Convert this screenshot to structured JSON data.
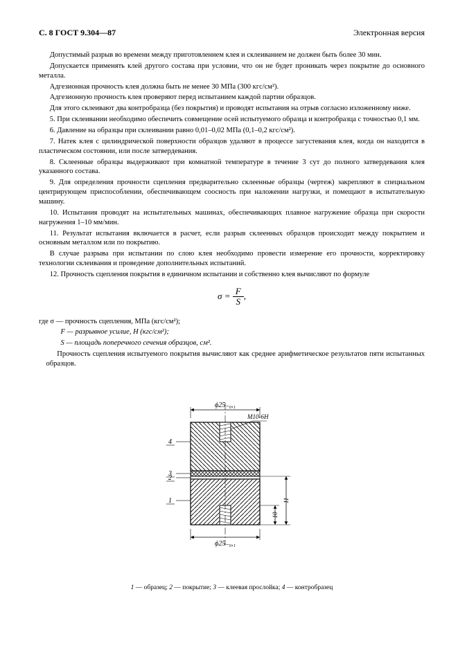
{
  "header": {
    "left": "С. 8 ГОСТ 9.304—87",
    "right": "Электронная версия"
  },
  "paragraphs": [
    "Допустимый разрыв во времени между приготовлением клея и склеиванием не должен быть более 30 мин.",
    "Допускается применять клей другого состава при условии, что он не будет проникать через покрытие до основного металла.",
    "Адгезионная прочность клея должна быть не менее 30 МПа (300 кгс/см²).",
    "Адгезионную прочность клея проверяют перед испытанием каждой партии образцов.",
    "Для этого склеивают два контробразца (без покрытия) и проводят испытания на отрыв согласно изложенному ниже.",
    "5. При склеивании необходимо обеспечить совмещение осей испытуемого образца и контробразца с точностью 0,1 мм.",
    "6. Давление на образцы при склеивании равно 0,01–0,02 МПа (0,1–0,2 кгс/см²).",
    "7. Натек клея с цилиндрической поверхности образцов удаляют в процессе загустевания клея, когда он находится в пластическом состоянии, или после затвердевания.",
    "8. Склеенные образцы выдерживают при комнатной температуре в течение 3 сут до полного затвердевания клея указанного состава.",
    "9. Для определения прочности сцепления предварительно склеенные образцы (чертеж) закрепляют в специальном центрирующем приспособлении, обеспечивающем соосность при наложении нагрузки, и помещают в испытательную машину.",
    "10. Испытания проводят на испытательных машинах, обеспечивающих плавное нагружение образца при скорости нагружения 1–10 мм/мин.",
    "11. Результат испытания включается в расчет, если разрыв склеенных образцов происходит между покрытием и основным металлом или по покрытию.",
    "В случае разрыва при испытании по слою клея необходимо провести измерение его прочности, корректировку технологии склеивания и проведение дополнительных испытаний.",
    "12. Прочность сцепления покрытия в единичном испытании и собственно клея вычисляют по формуле"
  ],
  "formula": {
    "lhs": "σ =",
    "num": "F",
    "den": "S"
  },
  "where": {
    "line1": "где σ — прочность сцепления, МПа (кгс/см²);",
    "line2": "F — разрывное усилие, Н (кгс/см²);",
    "line3": "S — площадь поперечного сечения образцов, см².",
    "line4": "Прочность сцепления испытуемого покрытия вычисляют как среднее арифметическое результатов пяти испытанных образцов."
  },
  "fig": {
    "dim_top": "ϕ25₋₀,₁",
    "thread": "М10-6Н",
    "dim_bottom": "ϕ25₋₀,₁",
    "label1": "4",
    "label2": "3",
    "label3": "2",
    "label4": "1",
    "dim_right1": "11",
    "dim_right2": "10",
    "caption_parts": {
      "n1": "1",
      "t1": " — образец; ",
      "n2": "2",
      "t2": " — покрытие; ",
      "n3": "3",
      "t3": " — клеевая прослойка; ",
      "n4": "4",
      "t4": " — контробразец"
    },
    "colors": {
      "body_fill": "#ffffff",
      "stroke": "#000000",
      "hatch": "#000000",
      "glue_fill": "#ffffff"
    }
  }
}
